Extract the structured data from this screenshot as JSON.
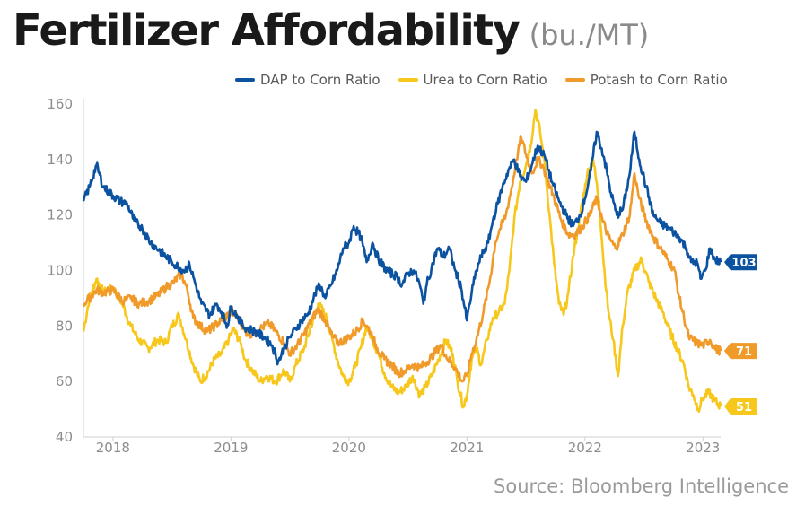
{
  "title": "Fertilizer Affordability",
  "subtitle": "(bu./MT)",
  "source": "Source: Bloomberg Intelligence",
  "colors": {
    "dap": "#0b52a0",
    "urea": "#f7c71c",
    "potash": "#f09a2a",
    "axis": "#cfcfcf"
  },
  "chart_data": {
    "type": "line",
    "xlim": [
      2017.75,
      2023.15
    ],
    "ylim": [
      40,
      160
    ],
    "y_ticks": [
      40,
      60,
      80,
      100,
      120,
      140,
      160
    ],
    "x_tick_labels": [
      "2018",
      "2019",
      "2020",
      "2021",
      "2022",
      "2023"
    ],
    "x_tick_positions": [
      2018,
      2019,
      2020,
      2021,
      2022,
      2023
    ],
    "grid": false,
    "legend_position": "top",
    "series": [
      {
        "name": "DAP to Corn Ratio",
        "color": "#0b52a0",
        "end_label": "103",
        "points": [
          [
            2017.75,
            125
          ],
          [
            2017.8,
            130
          ],
          [
            2017.86,
            138
          ],
          [
            2017.92,
            130
          ],
          [
            2018.0,
            127
          ],
          [
            2018.06,
            125
          ],
          [
            2018.12,
            124
          ],
          [
            2018.18,
            118
          ],
          [
            2018.25,
            115
          ],
          [
            2018.32,
            110
          ],
          [
            2018.4,
            107
          ],
          [
            2018.5,
            103
          ],
          [
            2018.6,
            100
          ],
          [
            2018.65,
            102
          ],
          [
            2018.7,
            95
          ],
          [
            2018.75,
            88
          ],
          [
            2018.82,
            84
          ],
          [
            2018.88,
            88
          ],
          [
            2018.92,
            85
          ],
          [
            2018.97,
            80
          ],
          [
            2019.0,
            87
          ],
          [
            2019.05,
            84
          ],
          [
            2019.1,
            80
          ],
          [
            2019.2,
            78
          ],
          [
            2019.28,
            76
          ],
          [
            2019.35,
            73
          ],
          [
            2019.4,
            67
          ],
          [
            2019.45,
            72
          ],
          [
            2019.5,
            76
          ],
          [
            2019.55,
            79
          ],
          [
            2019.6,
            82
          ],
          [
            2019.65,
            84
          ],
          [
            2019.7,
            90
          ],
          [
            2019.75,
            95
          ],
          [
            2019.8,
            90
          ],
          [
            2019.85,
            95
          ],
          [
            2019.9,
            100
          ],
          [
            2019.95,
            108
          ],
          [
            2020.0,
            110
          ],
          [
            2020.04,
            116
          ],
          [
            2020.1,
            112
          ],
          [
            2020.15,
            103
          ],
          [
            2020.2,
            110
          ],
          [
            2020.25,
            104
          ],
          [
            2020.32,
            100
          ],
          [
            2020.4,
            98
          ],
          [
            2020.45,
            95
          ],
          [
            2020.5,
            99
          ],
          [
            2020.55,
            100
          ],
          [
            2020.6,
            95
          ],
          [
            2020.63,
            88
          ],
          [
            2020.66,
            95
          ],
          [
            2020.7,
            101
          ],
          [
            2020.75,
            108
          ],
          [
            2020.8,
            105
          ],
          [
            2020.85,
            108
          ],
          [
            2020.9,
            100
          ],
          [
            2020.95,
            94
          ],
          [
            2021.0,
            82
          ],
          [
            2021.04,
            92
          ],
          [
            2021.08,
            100
          ],
          [
            2021.12,
            105
          ],
          [
            2021.18,
            110
          ],
          [
            2021.22,
            118
          ],
          [
            2021.26,
            124
          ],
          [
            2021.3,
            130
          ],
          [
            2021.35,
            136
          ],
          [
            2021.4,
            140
          ],
          [
            2021.45,
            134
          ],
          [
            2021.5,
            132
          ],
          [
            2021.55,
            138
          ],
          [
            2021.6,
            145
          ],
          [
            2021.66,
            141
          ],
          [
            2021.72,
            132
          ],
          [
            2021.78,
            125
          ],
          [
            2021.84,
            120
          ],
          [
            2021.9,
            116
          ],
          [
            2021.96,
            120
          ],
          [
            2022.0,
            126
          ],
          [
            2022.05,
            136
          ],
          [
            2022.1,
            150
          ],
          [
            2022.16,
            141
          ],
          [
            2022.22,
            128
          ],
          [
            2022.27,
            120
          ],
          [
            2022.32,
            122
          ],
          [
            2022.38,
            135
          ],
          [
            2022.42,
            150
          ],
          [
            2022.46,
            140
          ],
          [
            2022.52,
            130
          ],
          [
            2022.58,
            120
          ],
          [
            2022.64,
            117
          ],
          [
            2022.72,
            115
          ],
          [
            2022.8,
            112
          ],
          [
            2022.86,
            108
          ],
          [
            2022.9,
            103
          ],
          [
            2022.95,
            103
          ],
          [
            2022.98,
            97
          ],
          [
            2023.02,
            100
          ],
          [
            2023.06,
            108
          ],
          [
            2023.1,
            104
          ],
          [
            2023.15,
            103
          ]
        ]
      },
      {
        "name": "Urea to Corn Ratio",
        "color": "#f7c71c",
        "end_label": "51",
        "points": [
          [
            2017.75,
            78
          ],
          [
            2017.8,
            90
          ],
          [
            2017.86,
            97
          ],
          [
            2017.92,
            92
          ],
          [
            2018.0,
            94
          ],
          [
            2018.08,
            88
          ],
          [
            2018.15,
            80
          ],
          [
            2018.22,
            75
          ],
          [
            2018.3,
            72
          ],
          [
            2018.38,
            75
          ],
          [
            2018.45,
            74
          ],
          [
            2018.5,
            80
          ],
          [
            2018.56,
            84
          ],
          [
            2018.62,
            75
          ],
          [
            2018.68,
            66
          ],
          [
            2018.74,
            60
          ],
          [
            2018.8,
            63
          ],
          [
            2018.86,
            68
          ],
          [
            2018.92,
            70
          ],
          [
            2018.98,
            75
          ],
          [
            2019.02,
            79
          ],
          [
            2019.08,
            74
          ],
          [
            2019.12,
            68
          ],
          [
            2019.18,
            64
          ],
          [
            2019.25,
            60
          ],
          [
            2019.3,
            62
          ],
          [
            2019.38,
            60
          ],
          [
            2019.45,
            64
          ],
          [
            2019.5,
            60
          ],
          [
            2019.55,
            66
          ],
          [
            2019.62,
            72
          ],
          [
            2019.68,
            80
          ],
          [
            2019.74,
            88
          ],
          [
            2019.8,
            84
          ],
          [
            2019.86,
            75
          ],
          [
            2019.9,
            68
          ],
          [
            2019.95,
            62
          ],
          [
            2020.0,
            60
          ],
          [
            2020.05,
            65
          ],
          [
            2020.1,
            72
          ],
          [
            2020.15,
            80
          ],
          [
            2020.2,
            75
          ],
          [
            2020.25,
            70
          ],
          [
            2020.3,
            63
          ],
          [
            2020.36,
            58
          ],
          [
            2020.42,
            56
          ],
          [
            2020.48,
            58
          ],
          [
            2020.54,
            62
          ],
          [
            2020.6,
            55
          ],
          [
            2020.65,
            58
          ],
          [
            2020.7,
            62
          ],
          [
            2020.76,
            68
          ],
          [
            2020.82,
            75
          ],
          [
            2020.88,
            70
          ],
          [
            2020.92,
            60
          ],
          [
            2020.97,
            51
          ],
          [
            2021.0,
            55
          ],
          [
            2021.04,
            68
          ],
          [
            2021.08,
            72
          ],
          [
            2021.12,
            66
          ],
          [
            2021.17,
            75
          ],
          [
            2021.22,
            83
          ],
          [
            2021.27,
            85
          ],
          [
            2021.32,
            88
          ],
          [
            2021.36,
            100
          ],
          [
            2021.4,
            118
          ],
          [
            2021.45,
            132
          ],
          [
            2021.5,
            138
          ],
          [
            2021.54,
            145
          ],
          [
            2021.58,
            158
          ],
          [
            2021.62,
            150
          ],
          [
            2021.66,
            138
          ],
          [
            2021.7,
            120
          ],
          [
            2021.74,
            102
          ],
          [
            2021.78,
            88
          ],
          [
            2021.82,
            84
          ],
          [
            2021.86,
            92
          ],
          [
            2021.9,
            105
          ],
          [
            2021.96,
            120
          ],
          [
            2022.02,
            135
          ],
          [
            2022.07,
            140
          ],
          [
            2022.12,
            125
          ],
          [
            2022.16,
            102
          ],
          [
            2022.2,
            85
          ],
          [
            2022.24,
            75
          ],
          [
            2022.28,
            62
          ],
          [
            2022.32,
            80
          ],
          [
            2022.36,
            92
          ],
          [
            2022.42,
            100
          ],
          [
            2022.48,
            104
          ],
          [
            2022.54,
            96
          ],
          [
            2022.6,
            90
          ],
          [
            2022.66,
            85
          ],
          [
            2022.72,
            78
          ],
          [
            2022.78,
            72
          ],
          [
            2022.84,
            66
          ],
          [
            2022.88,
            58
          ],
          [
            2022.92,
            55
          ],
          [
            2022.96,
            50
          ],
          [
            2023.0,
            54
          ],
          [
            2023.05,
            56
          ],
          [
            2023.1,
            53
          ],
          [
            2023.15,
            51
          ]
        ]
      },
      {
        "name": "Potash to Corn Ratio",
        "color": "#f09a2a",
        "end_label": "71",
        "points": [
          [
            2017.75,
            88
          ],
          [
            2017.8,
            90
          ],
          [
            2017.86,
            93
          ],
          [
            2017.92,
            92
          ],
          [
            2018.0,
            93
          ],
          [
            2018.08,
            89
          ],
          [
            2018.15,
            90
          ],
          [
            2018.22,
            88
          ],
          [
            2018.3,
            89
          ],
          [
            2018.38,
            91
          ],
          [
            2018.45,
            94
          ],
          [
            2018.52,
            96
          ],
          [
            2018.58,
            99
          ],
          [
            2018.63,
            93
          ],
          [
            2018.68,
            83
          ],
          [
            2018.74,
            80
          ],
          [
            2018.8,
            78
          ],
          [
            2018.86,
            80
          ],
          [
            2018.92,
            82
          ],
          [
            2019.0,
            85
          ],
          [
            2019.06,
            83
          ],
          [
            2019.12,
            78
          ],
          [
            2019.18,
            77
          ],
          [
            2019.25,
            79
          ],
          [
            2019.32,
            81
          ],
          [
            2019.38,
            78
          ],
          [
            2019.45,
            74
          ],
          [
            2019.5,
            70
          ],
          [
            2019.56,
            73
          ],
          [
            2019.62,
            77
          ],
          [
            2019.68,
            82
          ],
          [
            2019.74,
            86
          ],
          [
            2019.8,
            82
          ],
          [
            2019.86,
            76
          ],
          [
            2019.92,
            74
          ],
          [
            2020.0,
            76
          ],
          [
            2020.06,
            78
          ],
          [
            2020.12,
            82
          ],
          [
            2020.18,
            78
          ],
          [
            2020.24,
            72
          ],
          [
            2020.3,
            68
          ],
          [
            2020.36,
            66
          ],
          [
            2020.42,
            63
          ],
          [
            2020.48,
            64
          ],
          [
            2020.54,
            66
          ],
          [
            2020.6,
            65
          ],
          [
            2020.66,
            67
          ],
          [
            2020.72,
            70
          ],
          [
            2020.78,
            73
          ],
          [
            2020.84,
            68
          ],
          [
            2020.9,
            65
          ],
          [
            2020.96,
            60
          ],
          [
            2021.0,
            62
          ],
          [
            2021.04,
            70
          ],
          [
            2021.08,
            75
          ],
          [
            2021.14,
            85
          ],
          [
            2021.2,
            98
          ],
          [
            2021.24,
            110
          ],
          [
            2021.28,
            115
          ],
          [
            2021.33,
            120
          ],
          [
            2021.38,
            130
          ],
          [
            2021.42,
            140
          ],
          [
            2021.46,
            148
          ],
          [
            2021.5,
            142
          ],
          [
            2021.55,
            135
          ],
          [
            2021.6,
            140
          ],
          [
            2021.64,
            138
          ],
          [
            2021.68,
            133
          ],
          [
            2021.74,
            126
          ],
          [
            2021.8,
            118
          ],
          [
            2021.86,
            113
          ],
          [
            2021.92,
            113
          ],
          [
            2021.98,
            116
          ],
          [
            2022.04,
            120
          ],
          [
            2022.1,
            126
          ],
          [
            2022.15,
            118
          ],
          [
            2022.2,
            112
          ],
          [
            2022.26,
            108
          ],
          [
            2022.32,
            113
          ],
          [
            2022.38,
            120
          ],
          [
            2022.42,
            135
          ],
          [
            2022.46,
            126
          ],
          [
            2022.52,
            118
          ],
          [
            2022.58,
            112
          ],
          [
            2022.64,
            108
          ],
          [
            2022.7,
            104
          ],
          [
            2022.76,
            100
          ],
          [
            2022.8,
            90
          ],
          [
            2022.84,
            83
          ],
          [
            2022.88,
            76
          ],
          [
            2022.94,
            74
          ],
          [
            2023.0,
            73
          ],
          [
            2023.06,
            75
          ],
          [
            2023.1,
            72
          ],
          [
            2023.15,
            71
          ]
        ]
      }
    ]
  }
}
